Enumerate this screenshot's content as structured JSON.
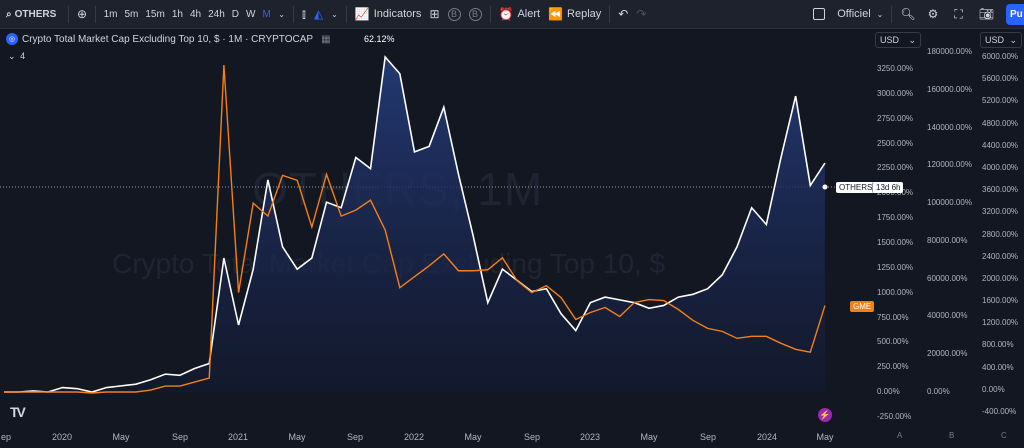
{
  "toolbar": {
    "symbol": "OTHERS",
    "intervals": [
      "1m",
      "5m",
      "15m",
      "1h",
      "4h",
      "24h",
      "D",
      "W",
      "M"
    ],
    "active_interval": "M",
    "indicators_label": "Indicators",
    "alert_label": "Alert",
    "replay_label": "Replay",
    "layout_name": "Officiel",
    "publish_label": "Pu"
  },
  "legend": {
    "title": "Crypto Total Market Cap Excluding Top 10, $ · 1M · CRYPTOCAP",
    "change": "62.12%",
    "collapsed_count": "4"
  },
  "watermark": {
    "symbol": "OTHERS, 1M",
    "description": "Crypto Total Market Cap Excluding Top 10, $"
  },
  "scales": {
    "currency": "USD",
    "left_axis": [
      "3250.00%",
      "3000.00%",
      "2750.00%",
      "2500.00%",
      "2250.00%",
      "2000.00%",
      "1750.00%",
      "1500.00%",
      "1250.00%",
      "1000.00%",
      "750.00%",
      "500.00%",
      "250.00%",
      "0.00%",
      "-250.00%"
    ],
    "middle_axis": [
      "180000.00%",
      "160000.00%",
      "140000.00%",
      "120000.00%",
      "100000.00%",
      "80000.00%",
      "60000.00%",
      "40000.00%",
      "20000.00%",
      "0.00%"
    ],
    "right_axis": [
      "6000.00%",
      "5600.00%",
      "5200.00%",
      "4800.00%",
      "4400.00%",
      "4000.00%",
      "3600.00%",
      "3200.00%",
      "2800.00%",
      "2400.00%",
      "2000.00%",
      "1600.00%",
      "1200.00%",
      "800.00%",
      "400.00%",
      "0.00%",
      "-400.00%"
    ],
    "scale_letters": [
      "A",
      "B",
      "C"
    ]
  },
  "tags": {
    "others": "OTHERS",
    "countdown": "13d 6h",
    "gme": "GME"
  },
  "x_axis": [
    "ep",
    "2020",
    "May",
    "Sep",
    "2021",
    "May",
    "Sep",
    "2022",
    "May",
    "Sep",
    "2023",
    "May",
    "Sep",
    "2024",
    "May"
  ],
  "chart_data": {
    "type": "line",
    "x": [
      "2019-09",
      "2019-10",
      "2019-11",
      "2019-12",
      "2020-01",
      "2020-02",
      "2020-03",
      "2020-04",
      "2020-05",
      "2020-06",
      "2020-07",
      "2020-08",
      "2020-09",
      "2020-10",
      "2020-11",
      "2020-12",
      "2021-01",
      "2021-02",
      "2021-03",
      "2021-04",
      "2021-05",
      "2021-06",
      "2021-07",
      "2021-08",
      "2021-09",
      "2021-10",
      "2021-11",
      "2021-12",
      "2022-01",
      "2022-02",
      "2022-03",
      "2022-04",
      "2022-05",
      "2022-06",
      "2022-07",
      "2022-08",
      "2022-09",
      "2022-10",
      "2022-11",
      "2022-12",
      "2023-01",
      "2023-02",
      "2023-03",
      "2023-04",
      "2023-05",
      "2023-06",
      "2023-07",
      "2023-08",
      "2023-09",
      "2023-10",
      "2023-11",
      "2023-12",
      "2024-01",
      "2024-02",
      "2024-03",
      "2024-04",
      "2024-05"
    ],
    "series": [
      {
        "name": "OTHERS",
        "axis": "right",
        "color": "#ffffff",
        "values": [
          0,
          0,
          20,
          0,
          80,
          60,
          0,
          80,
          110,
          140,
          220,
          320,
          300,
          420,
          510,
          2400,
          1200,
          2200,
          3800,
          2600,
          2200,
          2400,
          3400,
          3300,
          4200,
          4000,
          6000,
          5700,
          4300,
          4400,
          5100,
          3900,
          2800,
          1600,
          2200,
          2000,
          1800,
          1850,
          1400,
          1100,
          1600,
          1700,
          1650,
          1600,
          1500,
          1550,
          1700,
          1750,
          1850,
          2100,
          2600,
          3300,
          3000,
          4200,
          5300,
          3700,
          4100
        ]
      },
      {
        "name": "GME",
        "axis": "left",
        "color": "#f57f17",
        "values": [
          0,
          0,
          0,
          0,
          0,
          0,
          -10,
          0,
          0,
          0,
          20,
          60,
          60,
          100,
          140,
          3290,
          1000,
          1900,
          1770,
          2180,
          2130,
          1660,
          2190,
          1770,
          1830,
          1930,
          1630,
          1050,
          1160,
          1270,
          1390,
          1220,
          1220,
          1230,
          1350,
          1120,
          1000,
          1070,
          950,
          730,
          800,
          850,
          760,
          900,
          930,
          920,
          830,
          720,
          640,
          610,
          540,
          560,
          560,
          490,
          430,
          400,
          870
        ]
      }
    ],
    "left_ylim": [
      -250,
      3250
    ],
    "right_ylim": [
      -400,
      6000
    ],
    "grid": false,
    "legend": "top-left"
  }
}
